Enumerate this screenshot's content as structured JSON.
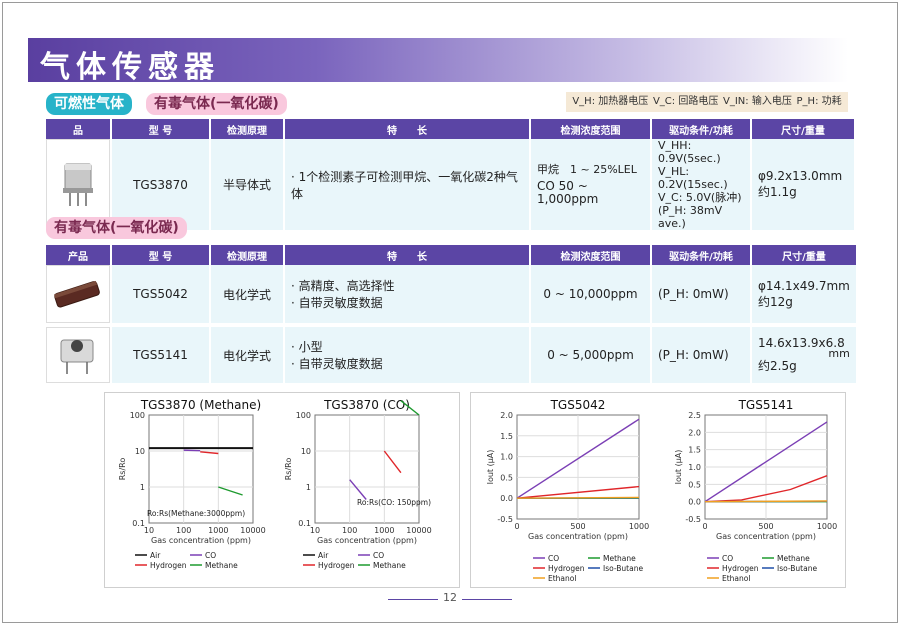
{
  "page": {
    "title": "气体传感器",
    "number": "12"
  },
  "section1": {
    "tag_combustible": "可燃性气体",
    "tag_toxic": "有毒气体(一氧化碳)",
    "legend": [
      "V_H: 加热器电压",
      "V_C: 回路电压",
      "V_IN: 输入电压",
      "P_H: 功耗"
    ],
    "headers": [
      "品",
      "型 号",
      "检测原理",
      "特　　长",
      "检测浓度范围",
      "驱动条件/功耗",
      "尺寸/重量"
    ],
    "rows": [
      {
        "model": "TGS3870",
        "principle": "半导体式",
        "features": [
          "· 1个检测素子可检测甲烷、一氧化碳2种气体"
        ],
        "range": [
          "甲烷　1 ~ 25%LEL",
          "CO 50 ~ 1,000ppm"
        ],
        "drive": [
          "V_HH: 0.9V(5sec.)",
          "V_HL: 0.2V(15sec.)",
          "V_C: 5.0V(脉冲)",
          "(P_H: 38mV ave.)"
        ],
        "size": [
          "φ9.2x13.0mm",
          "约1.1g"
        ]
      }
    ]
  },
  "section2": {
    "tag_toxic": "有毒气体(一氧化碳)",
    "headers": [
      "产品",
      "型 号",
      "检测原理",
      "特　　长",
      "检测浓度范围",
      "驱动条件/功耗",
      "尺寸/重量"
    ],
    "rows": [
      {
        "model": "TGS5042",
        "principle": "电化学式",
        "features": [
          "· 高精度、高选择性",
          "· 自带灵敏度数据"
        ],
        "range": "0 ~ 10,000ppm",
        "drive": "(P_H: 0mW)",
        "size": [
          "φ14.1x49.7mm",
          "约12g"
        ]
      },
      {
        "model": "TGS5141",
        "principle": "电化学式",
        "features": [
          "· 小型",
          "· 自带灵敏度数据"
        ],
        "range": "0 ~ 5,000ppm",
        "drive": "(P_H: 0mW)",
        "size": [
          "14.6x13.9x6.8",
          "mm",
          "约2.5g"
        ]
      }
    ]
  },
  "chart_data": [
    {
      "type": "line",
      "title": "TGS3870 (Methane)",
      "xlabel": "Gas concentration (ppm)",
      "ylabel": "Rs/Ro",
      "xscale": "log",
      "yscale": "log",
      "xlim": [
        10,
        10000
      ],
      "ylim": [
        0.1,
        100
      ],
      "xticks": [
        "10",
        "100",
        "1000",
        "10000"
      ],
      "yticks": [
        "100",
        "10",
        "1",
        "0.1"
      ],
      "annotation": "Ro:Rs(Methane:3000ppm)",
      "series": [
        {
          "name": "Air",
          "color": "#111111",
          "x": [
            10,
            10000
          ],
          "y": [
            12,
            12
          ]
        },
        {
          "name": "CO",
          "color": "#7b3fb5",
          "x": [
            100,
            300
          ],
          "y": [
            10.5,
            10.2
          ]
        },
        {
          "name": "Hydrogen",
          "color": "#e0262a",
          "x": [
            300,
            1000
          ],
          "y": [
            9.5,
            8.5
          ]
        },
        {
          "name": "Methane",
          "color": "#1e9a2f",
          "x": [
            1000,
            5000
          ],
          "y": [
            1.0,
            0.6
          ]
        }
      ],
      "legend": [
        "Air",
        "CO",
        "Hydrogen",
        "Methane"
      ]
    },
    {
      "type": "line",
      "title": "TGS3870 (CO)",
      "xlabel": "Gas concentration (ppm)",
      "ylabel": "Rs/Ro",
      "xscale": "log",
      "yscale": "log",
      "xlim": [
        10,
        10000
      ],
      "ylim": [
        0.1,
        100
      ],
      "xticks": [
        "10",
        "100",
        "1000",
        "10000"
      ],
      "yticks": [
        "100",
        "10",
        "1",
        "0.1"
      ],
      "annotation": "Ro:Rs(CO: 150ppm)",
      "series": [
        {
          "name": "Air",
          "color": "#111111",
          "x": [],
          "y": []
        },
        {
          "name": "CO",
          "color": "#7b3fb5",
          "x": [
            100,
            300
          ],
          "y": [
            1.6,
            0.45
          ]
        },
        {
          "name": "Hydrogen",
          "color": "#e0262a",
          "x": [
            1000,
            3000
          ],
          "y": [
            10,
            2.5
          ]
        },
        {
          "name": "Methane",
          "color": "#1e9a2f",
          "x": [
            3000,
            10000
          ],
          "y": [
            250,
            100
          ]
        }
      ],
      "legend": [
        "Air",
        "CO",
        "Hydrogen",
        "Methane"
      ]
    },
    {
      "type": "line",
      "title": "TGS5042",
      "xlabel": "Gas concentration (ppm)",
      "ylabel": "Iout (μA)",
      "xlim": [
        0,
        1000
      ],
      "ylim": [
        -0.5,
        2.0
      ],
      "xticks": [
        "0",
        "500",
        "1000"
      ],
      "yticks": [
        "2.0",
        "1.5",
        "1.0",
        "0.5",
        "0.0",
        "-0.5"
      ],
      "series": [
        {
          "name": "CO",
          "color": "#7b3fb5",
          "x": [
            0,
            1000
          ],
          "y": [
            0,
            1.9
          ]
        },
        {
          "name": "Methane",
          "color": "#1e9a2f",
          "x": [
            0,
            1000
          ],
          "y": [
            0,
            0.0
          ]
        },
        {
          "name": "Hydrogen",
          "color": "#e0262a",
          "x": [
            0,
            1000
          ],
          "y": [
            0,
            0.28
          ]
        },
        {
          "name": "Iso-Butane",
          "color": "#1f4fa8",
          "x": [
            0,
            1000
          ],
          "y": [
            0,
            0.01
          ]
        },
        {
          "name": "Ethanol",
          "color": "#f0a020",
          "x": [
            0,
            1000
          ],
          "y": [
            0,
            0.02
          ]
        }
      ],
      "legend": [
        "CO",
        "Methane",
        "Hydrogen",
        "Iso-Butane",
        "Ethanol"
      ]
    },
    {
      "type": "line",
      "title": "TGS5141",
      "xlabel": "Gas concentration (ppm)",
      "ylabel": "Iout (μA)",
      "xlim": [
        0,
        1000
      ],
      "ylim": [
        -0.5,
        2.5
      ],
      "xticks": [
        "0",
        "500",
        "1000"
      ],
      "yticks": [
        "2.5",
        "2.0",
        "1.5",
        "1.0",
        "0.5",
        "0.0",
        "-0.5"
      ],
      "series": [
        {
          "name": "CO",
          "color": "#7b3fb5",
          "x": [
            0,
            1000
          ],
          "y": [
            0,
            2.3
          ]
        },
        {
          "name": "Methane",
          "color": "#1e9a2f",
          "x": [
            0,
            1000
          ],
          "y": [
            0,
            0.0
          ]
        },
        {
          "name": "Hydrogen",
          "color": "#e0262a",
          "x": [
            0,
            300,
            700,
            1000
          ],
          "y": [
            0,
            0.05,
            0.35,
            0.75
          ]
        },
        {
          "name": "Iso-Butane",
          "color": "#1f4fa8",
          "x": [
            0,
            1000
          ],
          "y": [
            0,
            0.01
          ]
        },
        {
          "name": "Ethanol",
          "color": "#f0a020",
          "x": [
            0,
            1000
          ],
          "y": [
            0,
            0.02
          ]
        }
      ],
      "legend": [
        "CO",
        "Methane",
        "Hydrogen",
        "Iso-Butane",
        "Ethanol"
      ]
    }
  ]
}
